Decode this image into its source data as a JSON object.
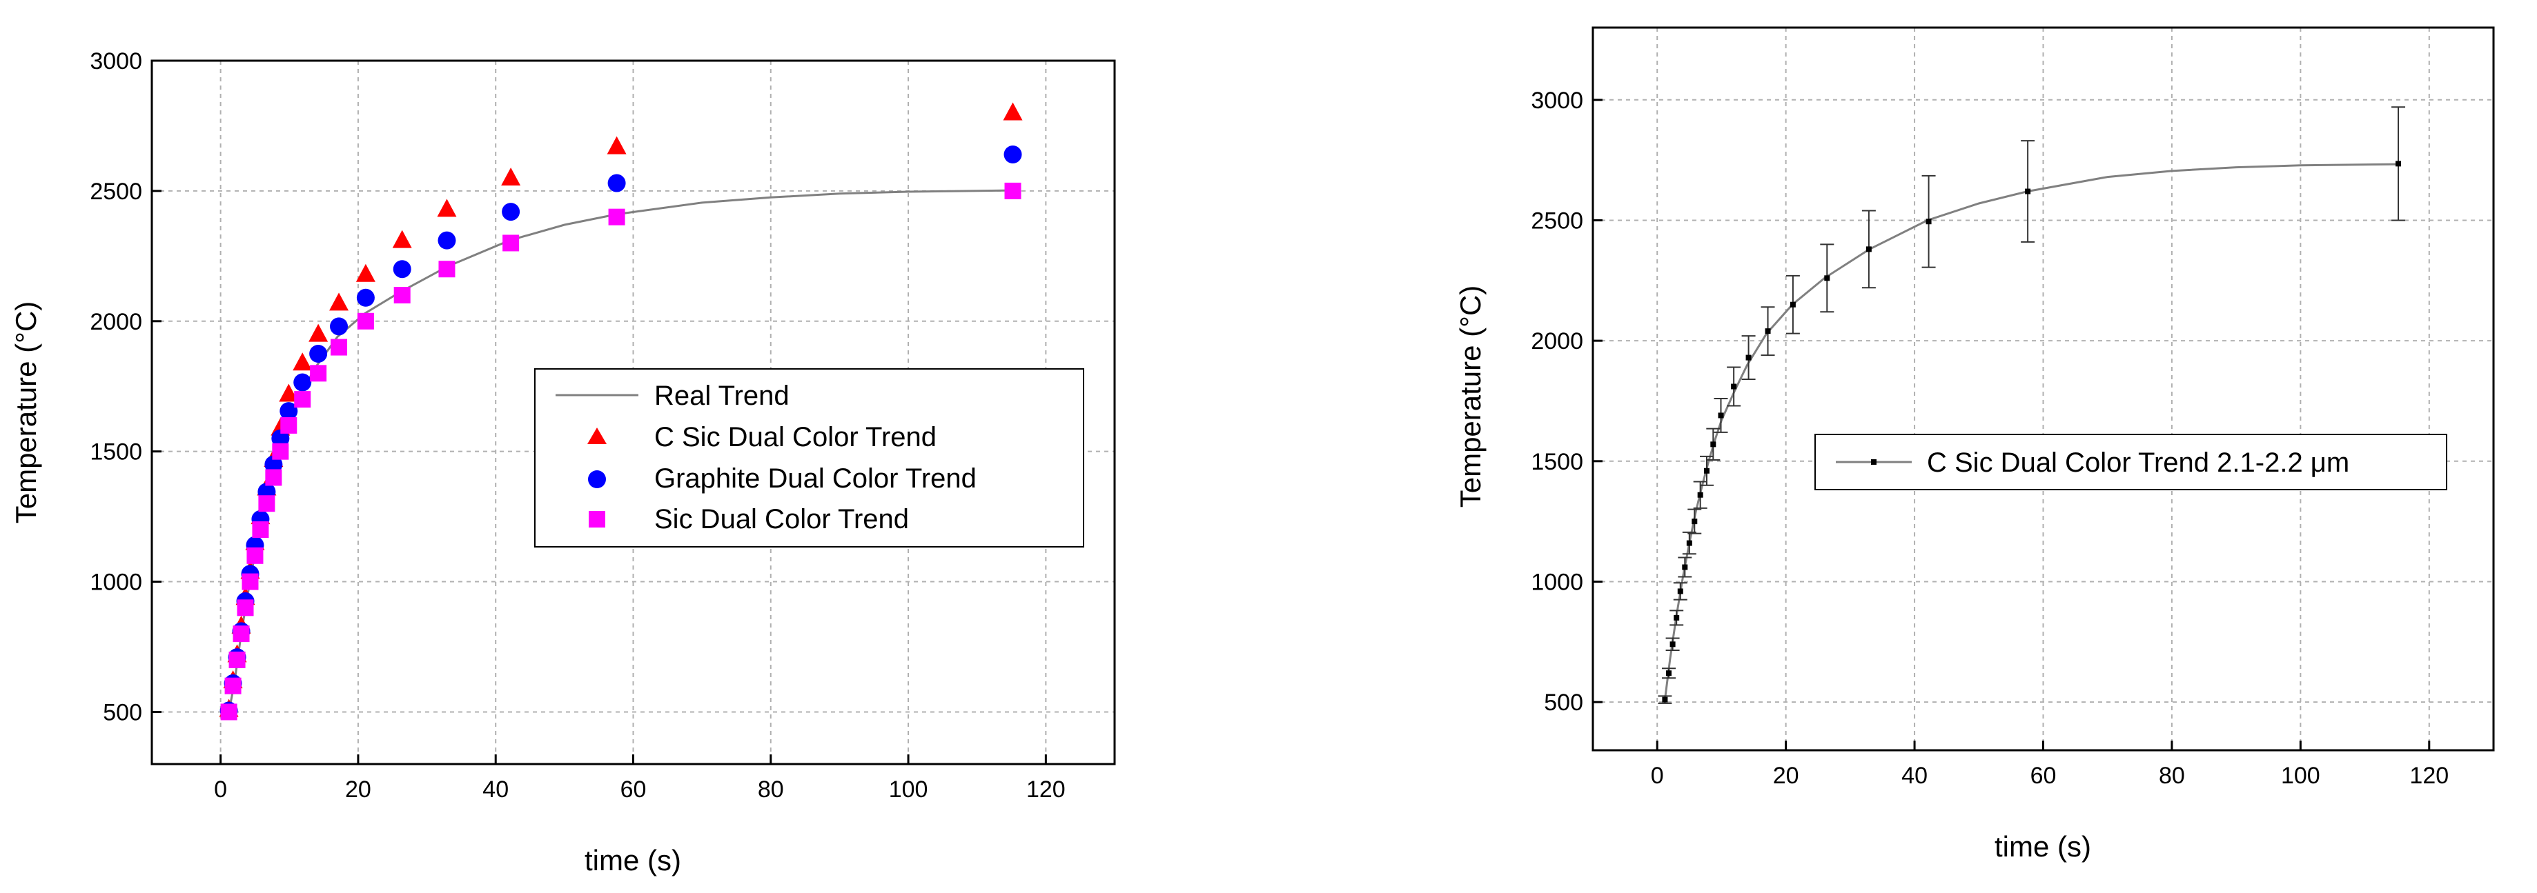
{
  "chart_data": [
    {
      "type": "scatter",
      "title": "",
      "xlabel": "time (s)",
      "ylabel": "Temperature (°C)",
      "xlim": [
        -10,
        130
      ],
      "ylim": [
        300,
        3000
      ],
      "xticks": [
        0,
        20,
        40,
        60,
        80,
        100,
        120
      ],
      "yticks": [
        500,
        1000,
        1500,
        2000,
        2500,
        3000
      ],
      "grid": true,
      "legend_position": "center-right",
      "series": [
        {
          "name": "Real Trend",
          "kind": "line",
          "color": "#808080",
          "x": [
            1.2,
            2,
            3,
            4,
            5,
            6,
            7,
            8,
            9,
            10,
            12,
            14,
            17,
            21,
            26,
            33,
            42,
            50,
            57.5,
            70,
            80,
            90,
            100,
            115
          ],
          "y": [
            500,
            610,
            800,
            960,
            1110,
            1240,
            1360,
            1460,
            1550,
            1630,
            1740,
            1830,
            1940,
            2030,
            2110,
            2210,
            2310,
            2370,
            2410,
            2455,
            2475,
            2490,
            2497,
            2502
          ]
        },
        {
          "name": "C Sic Dual Color Trend",
          "kind": "triangle",
          "color": "#ff0000",
          "x": [
            1.2,
            1.8,
            2.4,
            3.0,
            3.6,
            4.3,
            5.0,
            5.8,
            6.7,
            7.7,
            8.7,
            9.9,
            11.9,
            14.2,
            17.2,
            21.1,
            26.4,
            32.9,
            42.2,
            57.6,
            115.2
          ],
          "y": [
            510,
            620,
            720,
            830,
            940,
            1040,
            1150,
            1250,
            1360,
            1470,
            1590,
            1720,
            1840,
            1950,
            2070,
            2180,
            2310,
            2430,
            2550,
            2670,
            2800
          ]
        },
        {
          "name": "Graphite Dual Color Trend",
          "kind": "circle",
          "color": "#0000ff",
          "x": [
            1.2,
            1.8,
            2.4,
            3.0,
            3.6,
            4.3,
            5.0,
            5.8,
            6.7,
            7.7,
            8.7,
            9.9,
            11.9,
            14.2,
            17.2,
            21.1,
            26.4,
            32.9,
            42.2,
            57.6,
            115.2
          ],
          "y": [
            505,
            610,
            710,
            810,
            925,
            1030,
            1140,
            1240,
            1345,
            1450,
            1550,
            1655,
            1765,
            1875,
            1980,
            2090,
            2200,
            2310,
            2420,
            2530,
            2640
          ]
        },
        {
          "name": "Sic Dual Color Trend",
          "kind": "square",
          "color": "#ff00ff",
          "x": [
            1.2,
            1.8,
            2.4,
            3.0,
            3.6,
            4.3,
            5.0,
            5.8,
            6.7,
            7.7,
            8.7,
            9.9,
            11.9,
            14.2,
            17.2,
            21.1,
            26.4,
            32.9,
            42.2,
            57.6,
            115.2
          ],
          "y": [
            500,
            600,
            700,
            800,
            900,
            1000,
            1100,
            1200,
            1300,
            1400,
            1500,
            1600,
            1700,
            1800,
            1900,
            2000,
            2100,
            2200,
            2300,
            2400,
            2500
          ]
        }
      ]
    },
    {
      "type": "line",
      "title": "",
      "xlabel": "time (s)",
      "ylabel": "Temperature (°C)",
      "xlim": [
        -10,
        130
      ],
      "ylim": [
        300,
        3300
      ],
      "xticks": [
        0,
        20,
        40,
        60,
        80,
        100,
        120
      ],
      "yticks": [
        500,
        1000,
        1500,
        2000,
        2500,
        3000
      ],
      "grid": true,
      "legend_position": "center-right",
      "series": [
        {
          "name": "C Sic Dual Color Trend 2.1-2.2 μm",
          "kind": "line",
          "color": "#808080",
          "curve_x": [
            1.2,
            2,
            3,
            4,
            5,
            6,
            7,
            8,
            9,
            10,
            12,
            14,
            17,
            21,
            26,
            33,
            42,
            50,
            57.6,
            70,
            80,
            90,
            100,
            115.2
          ],
          "curve_y": [
            510,
            680,
            860,
            1020,
            1160,
            1290,
            1400,
            1500,
            1590,
            1670,
            1790,
            1900,
            2030,
            2150,
            2260,
            2380,
            2500,
            2570,
            2620,
            2680,
            2705,
            2720,
            2728,
            2733
          ],
          "points_x": [
            1.2,
            1.8,
            2.4,
            3.0,
            3.6,
            4.3,
            5.0,
            5.8,
            6.7,
            7.7,
            8.7,
            9.9,
            11.9,
            14.2,
            17.2,
            21.1,
            26.4,
            32.9,
            42.2,
            57.6,
            115.2
          ],
          "points_y": [
            510,
            620,
            740,
            850,
            960,
            1060,
            1160,
            1250,
            1360,
            1460,
            1570,
            1690,
            1810,
            1930,
            2040,
            2150,
            2260,
            2380,
            2495,
            2620,
            2735
          ],
          "error": [
            15,
            20,
            25,
            30,
            35,
            40,
            45,
            50,
            55,
            60,
            65,
            70,
            80,
            90,
            100,
            120,
            140,
            160,
            190,
            210,
            235
          ]
        }
      ]
    }
  ]
}
